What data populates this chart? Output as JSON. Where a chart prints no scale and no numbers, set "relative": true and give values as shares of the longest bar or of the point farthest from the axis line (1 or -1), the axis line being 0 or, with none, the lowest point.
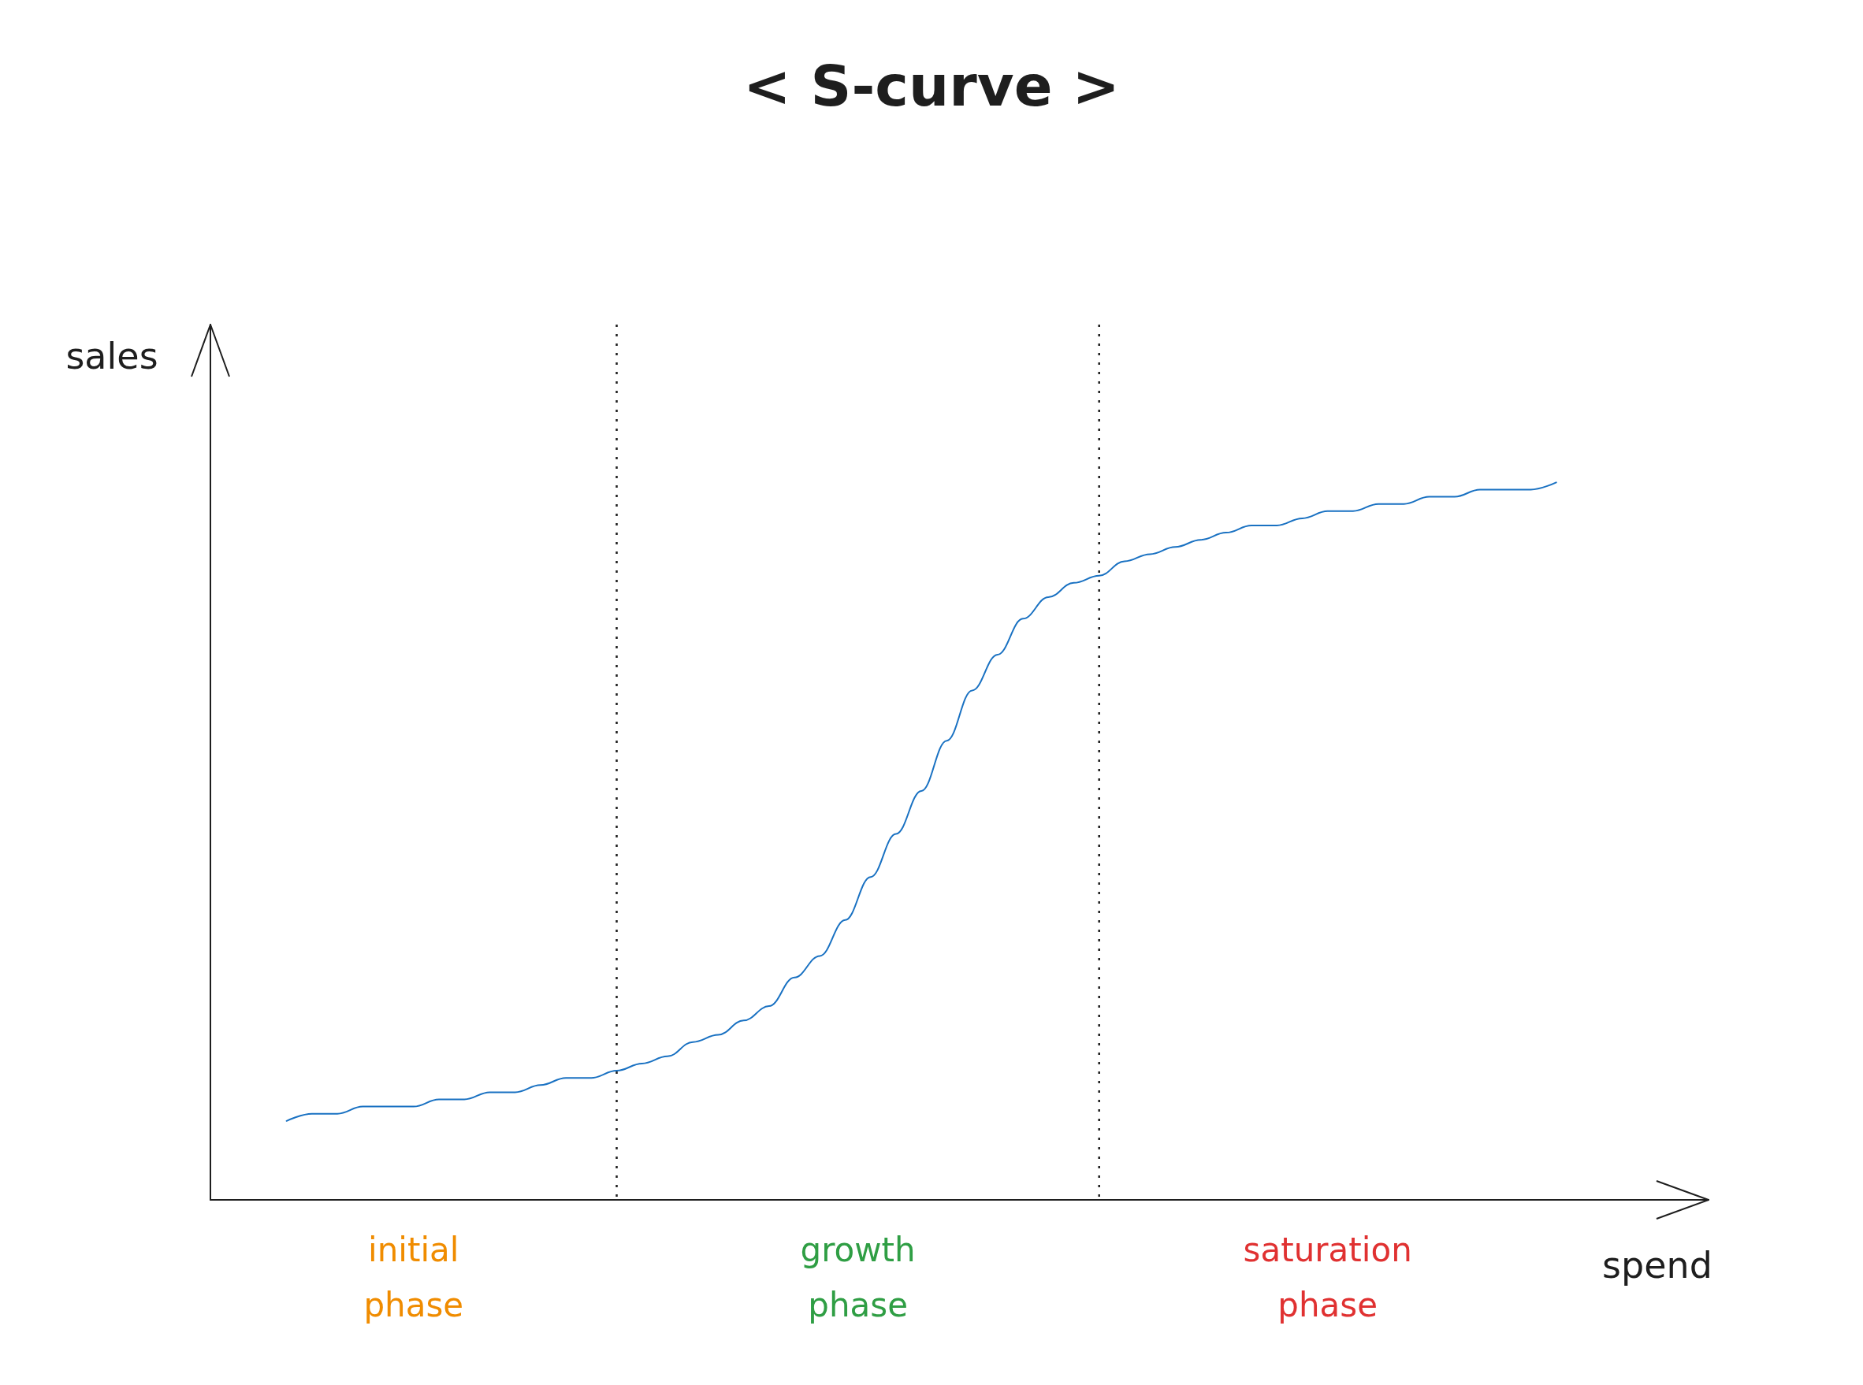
{
  "chart_data": {
    "type": "line",
    "title": "< S-curve >",
    "xlabel": "spend",
    "ylabel": "sales",
    "relative": true,
    "grid": false,
    "marker": "none",
    "line_style": "solid",
    "categories": [
      null,
      null,
      null,
      null,
      null,
      null,
      null,
      null,
      null,
      null,
      null,
      null,
      null,
      null,
      null,
      null,
      null,
      null,
      null,
      null,
      null,
      null,
      null,
      null,
      null,
      null,
      null,
      null,
      null,
      null,
      null,
      null,
      null,
      null,
      null,
      null,
      null,
      null,
      null,
      null,
      null,
      null,
      null,
      null,
      null,
      null,
      null,
      null,
      null,
      null,
      null,
      null,
      null,
      null,
      null,
      null,
      null,
      null,
      null,
      null
    ],
    "series": [
      {
        "color": "#1971c2",
        "values": [
          null,
          null,
          null,
          0.11,
          0.12,
          0.12,
          0.13,
          0.13,
          0.13,
          0.14,
          0.14,
          0.15,
          0.15,
          0.16,
          0.17,
          0.17,
          0.18,
          0.19,
          0.2,
          0.22,
          0.23,
          0.25,
          0.27,
          0.31,
          0.34,
          0.39,
          0.45,
          0.51,
          0.57,
          0.64,
          0.71,
          0.76,
          0.81,
          0.84,
          0.86,
          0.87,
          0.89,
          0.9,
          0.91,
          0.92,
          0.93,
          0.94,
          0.94,
          0.95,
          0.96,
          0.96,
          0.97,
          0.97,
          0.98,
          0.98,
          0.99,
          0.99,
          0.99,
          1,
          null,
          null,
          null,
          null,
          null,
          null
        ]
      }
    ],
    "annotations": [
      "initial\nphase",
      "growth\nphase",
      "saturation\nphase"
    ]
  }
}
